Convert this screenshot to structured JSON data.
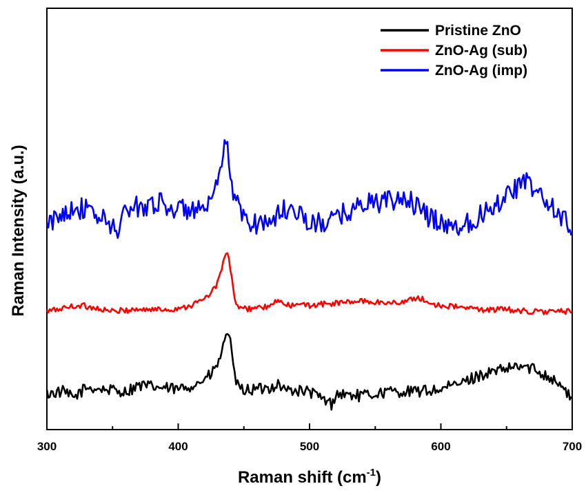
{
  "chart_data": {
    "type": "line",
    "xlabel": "Raman shift (cm",
    "xlabel_sup": "-1",
    "xlabel_end": ")",
    "ylabel": "Raman Intensity (a.u.)",
    "xlim": [
      300,
      700
    ],
    "ylim": [
      0,
      100
    ],
    "xticks": [
      "300",
      "400",
      "500",
      "600",
      "700"
    ],
    "legend_position": "top-right",
    "series": [
      {
        "name": "Pristine ZnO",
        "color": "#000000",
        "points": [
          [
            300,
            8.5
          ],
          [
            312,
            9
          ],
          [
            320,
            7.5
          ],
          [
            330,
            10
          ],
          [
            345,
            9.5
          ],
          [
            360,
            9
          ],
          [
            370,
            10.5
          ],
          [
            385,
            10
          ],
          [
            400,
            9.5
          ],
          [
            415,
            11
          ],
          [
            425,
            13
          ],
          [
            430,
            15.5
          ],
          [
            434,
            19
          ],
          [
            437,
            24
          ],
          [
            439,
            22.5
          ],
          [
            442,
            14
          ],
          [
            446,
            9.5
          ],
          [
            460,
            9.5
          ],
          [
            470,
            10
          ],
          [
            477,
            11
          ],
          [
            480,
            9.5
          ],
          [
            500,
            9
          ],
          [
            517,
            6
          ],
          [
            520,
            8.5
          ],
          [
            540,
            8
          ],
          [
            560,
            9
          ],
          [
            580,
            9
          ],
          [
            600,
            9.5
          ],
          [
            615,
            11
          ],
          [
            630,
            13
          ],
          [
            645,
            14
          ],
          [
            660,
            15
          ],
          [
            670,
            14.5
          ],
          [
            680,
            13
          ],
          [
            690,
            11
          ],
          [
            700,
            7
          ]
        ]
      },
      {
        "name": "ZnO-Ag (sub)",
        "color": "#ff0000",
        "points": [
          [
            300,
            28
          ],
          [
            315,
            29
          ],
          [
            325,
            29.5
          ],
          [
            335,
            29
          ],
          [
            350,
            28
          ],
          [
            365,
            28.5
          ],
          [
            380,
            28.5
          ],
          [
            395,
            28.5
          ],
          [
            410,
            29.5
          ],
          [
            420,
            31
          ],
          [
            428,
            33.5
          ],
          [
            433,
            38
          ],
          [
            437,
            42.5
          ],
          [
            440,
            38
          ],
          [
            443,
            30.5
          ],
          [
            448,
            28.5
          ],
          [
            460,
            29
          ],
          [
            470,
            29
          ],
          [
            476,
            31
          ],
          [
            480,
            29.5
          ],
          [
            500,
            29.5
          ],
          [
            520,
            30
          ],
          [
            540,
            30.5
          ],
          [
            560,
            30
          ],
          [
            575,
            30.5
          ],
          [
            583,
            31.5
          ],
          [
            590,
            30
          ],
          [
            600,
            29.5
          ],
          [
            615,
            29
          ],
          [
            630,
            28.5
          ],
          [
            650,
            28.5
          ],
          [
            670,
            28
          ],
          [
            690,
            28
          ],
          [
            700,
            28
          ]
        ]
      },
      {
        "name": "ZnO-Ag (imp)",
        "color": "#0000ff",
        "points": [
          [
            300,
            48
          ],
          [
            310,
            51
          ],
          [
            320,
            53
          ],
          [
            330,
            52
          ],
          [
            345,
            49.5
          ],
          [
            353,
            47
          ],
          [
            360,
            52
          ],
          [
            370,
            53
          ],
          [
            385,
            54
          ],
          [
            400,
            52
          ],
          [
            410,
            52.5
          ],
          [
            420,
            51.5
          ],
          [
            426,
            54
          ],
          [
            430,
            58
          ],
          [
            434,
            64
          ],
          [
            436,
            70
          ],
          [
            439,
            62
          ],
          [
            443,
            55
          ],
          [
            450,
            50
          ],
          [
            460,
            49
          ],
          [
            470,
            49.5
          ],
          [
            480,
            52
          ],
          [
            490,
            52.5
          ],
          [
            500,
            48.5
          ],
          [
            510,
            49
          ],
          [
            520,
            50
          ],
          [
            530,
            52
          ],
          [
            545,
            54
          ],
          [
            560,
            54
          ],
          [
            575,
            55
          ],
          [
            585,
            51.5
          ],
          [
            595,
            50
          ],
          [
            610,
            48
          ],
          [
            620,
            49
          ],
          [
            630,
            51
          ],
          [
            640,
            53
          ],
          [
            650,
            56
          ],
          [
            660,
            58
          ],
          [
            665,
            58.5
          ],
          [
            672,
            57
          ],
          [
            680,
            54
          ],
          [
            690,
            51
          ],
          [
            700,
            48
          ]
        ]
      }
    ]
  }
}
